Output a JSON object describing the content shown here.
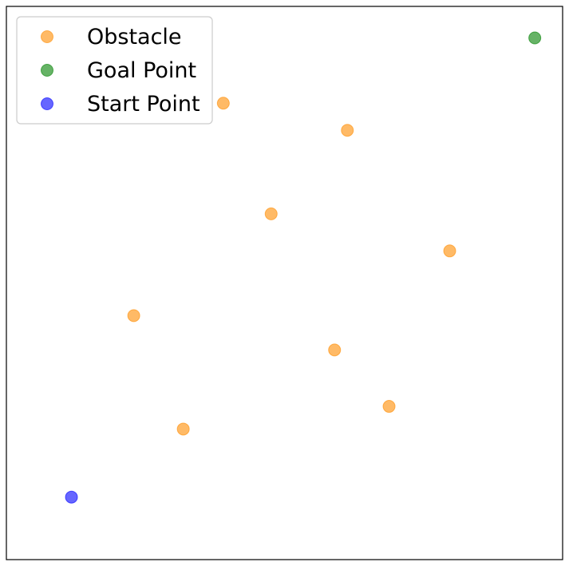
{
  "chart_data": {
    "type": "scatter",
    "xlim": [
      0,
      10
    ],
    "ylim": [
      0,
      10
    ],
    "xticks": [],
    "yticks": [],
    "grid": false,
    "legend_position": "upper-left",
    "point_alpha": 0.6,
    "series": [
      {
        "name": "Obstacle",
        "color": "#ff8c00",
        "points": [
          {
            "x": 3.9,
            "y": 8.25
          },
          {
            "x": 6.13,
            "y": 7.76
          },
          {
            "x": 4.76,
            "y": 6.25
          },
          {
            "x": 7.97,
            "y": 5.58
          },
          {
            "x": 2.29,
            "y": 4.41
          },
          {
            "x": 5.9,
            "y": 3.79
          },
          {
            "x": 6.88,
            "y": 2.77
          },
          {
            "x": 3.18,
            "y": 2.36
          }
        ]
      },
      {
        "name": "Goal Point",
        "color": "#008000",
        "points": [
          {
            "x": 9.5,
            "y": 9.43
          }
        ]
      },
      {
        "name": "Start Point",
        "color": "#0000ff",
        "points": [
          {
            "x": 1.17,
            "y": 1.13
          }
        ]
      }
    ]
  }
}
